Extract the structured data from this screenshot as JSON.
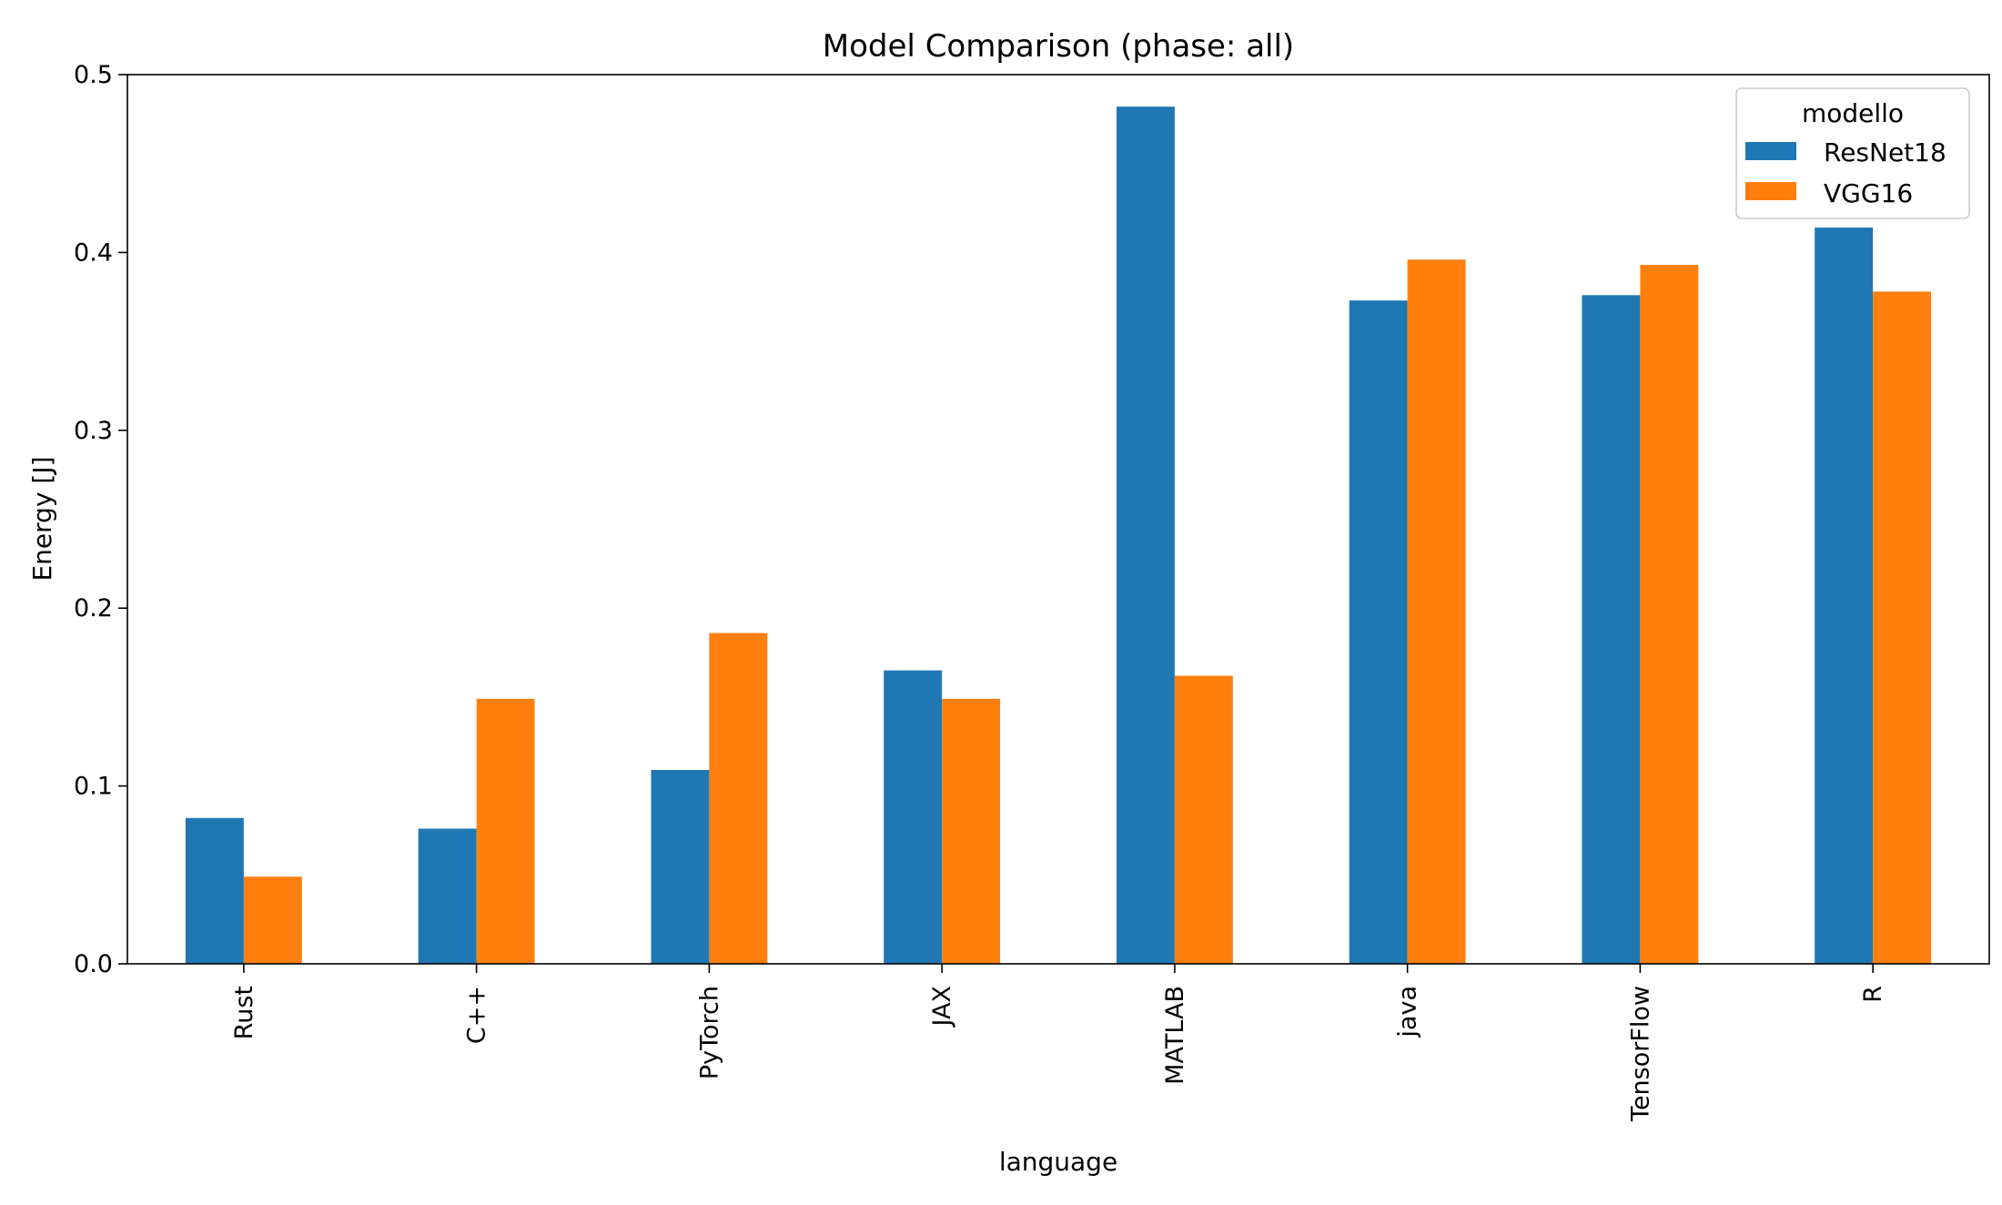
{
  "chart_data": {
    "type": "bar",
    "title": "Model Comparison (phase: all)",
    "xlabel": "language",
    "ylabel": "Energy [J]",
    "categories": [
      "Rust",
      "C++",
      "PyTorch",
      "JAX",
      "MATLAB",
      "java",
      "TensorFlow",
      "R"
    ],
    "series": [
      {
        "name": "ResNet18",
        "color": "#1f77b4",
        "values": [
          0.082,
          0.076,
          0.109,
          0.165,
          0.482,
          0.373,
          0.376,
          0.414
        ]
      },
      {
        "name": "VGG16",
        "color": "#ff7f0e",
        "values": [
          0.049,
          0.149,
          0.186,
          0.149,
          0.162,
          0.396,
          0.393,
          0.378
        ]
      }
    ],
    "ylim": [
      0,
      0.5
    ],
    "yticks": [
      "0.0",
      "0.1",
      "0.2",
      "0.3",
      "0.4",
      "0.5"
    ],
    "legend": {
      "title": "modello",
      "placement": "top-right"
    },
    "grid": false
  }
}
